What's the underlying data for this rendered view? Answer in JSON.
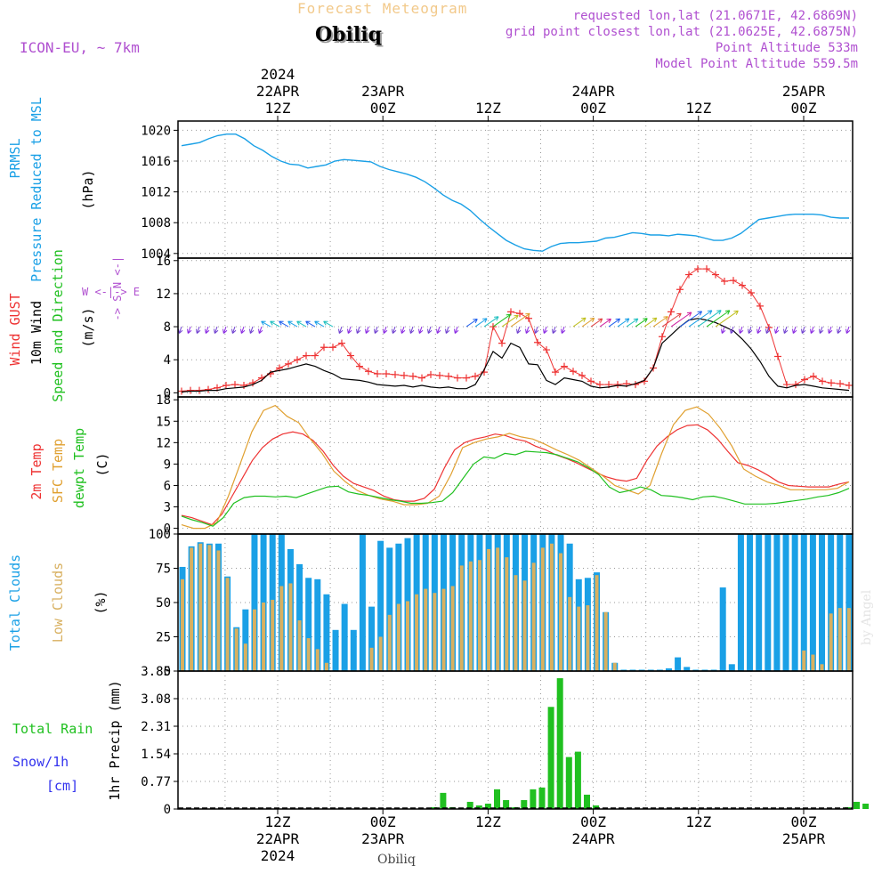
{
  "header": {
    "title": "Forecast Meteogram",
    "location": "Obiliq",
    "model": "ICON-EU, ~ 7km",
    "requested": "requested lon,lat (21.0671E, 42.6869N)",
    "gridpoint": "grid point closest lon,lat (21.0625E, 42.6875N)",
    "point_alt": "Point Altitude 533m",
    "model_alt": "Model Point Altitude 559.5m",
    "footer": "Obiliq",
    "signature": "by Angel"
  },
  "time_axis": {
    "top_labels": [
      {
        "lines": [
          "2024",
          "22APR",
          "12Z"
        ],
        "hour": 0
      },
      {
        "lines": [
          "23APR",
          "00Z"
        ],
        "hour": 12
      },
      {
        "lines": [
          "12Z"
        ],
        "hour": 24
      },
      {
        "lines": [
          "24APR",
          "00Z"
        ],
        "hour": 36
      },
      {
        "lines": [
          "12Z"
        ],
        "hour": 48
      },
      {
        "lines": [
          "25APR",
          "00Z"
        ],
        "hour": 60
      }
    ],
    "bottom_labels": [
      {
        "lines": [
          "12Z",
          "22APR",
          "2024"
        ],
        "hour": 0
      },
      {
        "lines": [
          "00Z",
          "23APR"
        ],
        "hour": 12
      },
      {
        "lines": [
          "12Z"
        ],
        "hour": 24
      },
      {
        "lines": [
          "00Z",
          "24APR"
        ],
        "hour": 36
      },
      {
        "lines": [
          "12Z"
        ],
        "hour": 48
      },
      {
        "lines": [
          "00Z",
          "25APR"
        ],
        "hour": 60
      }
    ]
  },
  "colors": {
    "pressure": "#1aa0e6",
    "gust": "#ee3333",
    "wind": "#000000",
    "temp2m": "#ee3333",
    "sfctemp": "#e0a030",
    "dewpt": "#20c020",
    "totalcloud": "#1aa0e6",
    "lowcloud": "#d8b060",
    "rain": "#20c020",
    "snow": "#3333ee",
    "windlabel": "#20c020",
    "compass": "#b050d0"
  },
  "panels": {
    "pressure": {
      "labels": [
        "PRMSL",
        "Pressure Reduced to MSL"
      ],
      "unit": "(hPa)"
    },
    "wind": {
      "labels": [
        "Wind GUST",
        "10m Wind",
        "Speed and Direction"
      ],
      "unit": "(m/s)",
      "compass": {
        "n": "N",
        "s": "S",
        "w": "W",
        "e": "E"
      }
    },
    "temp": {
      "labels": [
        "2m Temp",
        "SFC Temp",
        "dewpt Temp"
      ],
      "unit": "(C)"
    },
    "cloud": {
      "labels": [
        "Total Clouds",
        "Low Clouds"
      ],
      "unit": "(%)"
    },
    "precip": {
      "labels": [
        "Total  Rain",
        "Snow/1h",
        "[cm]"
      ],
      "unit": "1hr Precip (mm)"
    }
  },
  "chart_data": [
    {
      "type": "line",
      "title": "PRMSL Pressure Reduced to MSL",
      "ylabel": "hPa",
      "ylim": [
        1003.4,
        1021.2
      ],
      "yticks": [
        1004,
        1008,
        1012,
        1016,
        1020
      ],
      "x_hours_start": -9,
      "x_hours_end": 54,
      "series": [
        {
          "name": "PRMSL",
          "values": [
            1018.0,
            1018.2,
            1018.4,
            1018.9,
            1019.3,
            1019.5,
            1019.5,
            1018.9,
            1018.0,
            1017.4,
            1016.6,
            1016.0,
            1015.6,
            1015.5,
            1015.1,
            1015.3,
            1015.5,
            1016.0,
            1016.2,
            1016.1,
            1016.0,
            1015.9,
            1015.3,
            1014.9,
            1014.6,
            1014.3,
            1013.9,
            1013.3,
            1012.5,
            1011.6,
            1010.9,
            1010.4,
            1009.6,
            1008.5,
            1007.5,
            1006.6,
            1005.7,
            1005.1,
            1004.6,
            1004.4,
            1004.3,
            1004.9,
            1005.3,
            1005.4,
            1005.4,
            1005.5,
            1005.6,
            1006.0,
            1006.1,
            1006.4,
            1006.7,
            1006.6,
            1006.4,
            1006.4,
            1006.3,
            1006.5,
            1006.4,
            1006.3,
            1006.0,
            1005.7,
            1005.7,
            1006.0,
            1006.6,
            1007.5,
            1008.4,
            1008.6,
            1008.8,
            1009.0,
            1009.1,
            1009.1,
            1009.1,
            1009.0,
            1008.7,
            1008.6,
            1008.6
          ]
        }
      ]
    },
    {
      "type": "line",
      "title": "Wind GUST / 10m Wind Speed and Direction",
      "ylabel": "m/s",
      "ylim": [
        -0.5,
        16.3
      ],
      "yticks": [
        0,
        4,
        8,
        12,
        16
      ],
      "series": [
        {
          "name": "Wind GUST",
          "values": [
            0.2,
            0.3,
            0.3,
            0.4,
            0.6,
            0.9,
            1.0,
            0.9,
            1.2,
            1.8,
            2.3,
            3.0,
            3.5,
            4.0,
            4.5,
            4.5,
            5.5,
            5.5,
            6.0,
            4.5,
            3.2,
            2.6,
            2.3,
            2.3,
            2.2,
            2.1,
            2.0,
            1.8,
            2.2,
            2.1,
            2.0,
            1.8,
            1.8,
            2.0,
            2.5,
            8.0,
            6.0,
            9.8,
            9.6,
            9.0,
            6.1,
            5.2,
            2.5,
            3.2,
            2.6,
            2.1,
            1.4,
            1.0,
            1.0,
            1.0,
            1.1,
            1.0,
            1.4,
            3.0,
            6.8,
            9.8,
            12.5,
            14.3,
            15.0,
            15.0,
            14.3,
            13.5,
            13.6,
            13.0,
            12.1,
            10.5,
            7.9,
            4.4,
            1.0,
            1.0,
            1.6,
            2.0,
            1.4,
            1.2,
            1.1,
            0.9
          ]
        },
        {
          "name": "10m Wind",
          "values": [
            0.1,
            0.2,
            0.2,
            0.3,
            0.3,
            0.5,
            0.6,
            0.7,
            1.0,
            1.5,
            2.5,
            2.7,
            2.9,
            3.2,
            3.5,
            3.2,
            2.7,
            2.3,
            1.7,
            1.6,
            1.5,
            1.3,
            1.0,
            0.9,
            0.8,
            0.9,
            0.7,
            0.9,
            0.7,
            0.6,
            0.7,
            0.5,
            0.5,
            1.0,
            2.8,
            5.0,
            4.2,
            6.0,
            5.5,
            3.5,
            3.4,
            1.5,
            1.0,
            1.8,
            1.6,
            1.4,
            0.8,
            0.6,
            0.7,
            0.9,
            0.8,
            1.1,
            1.5,
            3.0,
            6.0,
            7.0,
            8.0,
            8.8,
            9.0,
            8.8,
            8.5,
            8.0,
            7.5,
            6.5,
            5.3,
            3.8,
            2.0,
            0.8,
            0.6,
            0.9,
            1.0,
            0.8,
            0.6,
            0.5,
            0.4,
            0.3
          ]
        }
      ]
    },
    {
      "type": "line",
      "title": "2m Temp / SFC Temp / dewpt Temp",
      "ylabel": "C",
      "ylim": [
        -0.8,
        18.4
      ],
      "yticks": [
        0,
        3,
        6,
        9,
        12,
        15,
        18
      ],
      "series": [
        {
          "name": "2m Temp",
          "values": [
            1.8,
            1.5,
            1.0,
            0.5,
            2.0,
            4.5,
            7.0,
            9.5,
            11.3,
            12.5,
            13.2,
            13.5,
            13.2,
            12.3,
            10.8,
            8.8,
            7.3,
            6.3,
            5.8,
            5.3,
            4.5,
            4.0,
            3.8,
            3.8,
            4.2,
            5.5,
            8.5,
            11.0,
            12.0,
            12.5,
            12.8,
            13.2,
            13.0,
            12.5,
            12.2,
            11.5,
            11.0,
            10.3,
            9.8,
            9.2,
            8.5,
            7.8,
            7.2,
            6.8,
            6.6,
            7.0,
            9.5,
            11.5,
            12.8,
            13.8,
            14.4,
            14.5,
            13.8,
            12.5,
            10.8,
            9.2,
            8.8,
            8.2,
            7.4,
            6.5,
            6.0,
            5.9,
            5.8,
            5.8,
            5.8,
            6.2,
            6.5
          ]
        },
        {
          "name": "SFC Temp",
          "values": [
            0.5,
            0.0,
            0.0,
            0.8,
            4.5,
            9.0,
            13.5,
            16.5,
            17.2,
            15.7,
            14.8,
            12.5,
            10.5,
            8.0,
            6.5,
            5.3,
            4.6,
            4.1,
            3.8,
            3.3,
            3.3,
            3.5,
            4.5,
            7.5,
            11.3,
            12.0,
            12.5,
            12.8,
            13.3,
            12.8,
            12.5,
            11.8,
            11.0,
            10.3,
            9.5,
            8.4,
            7.3,
            6.0,
            5.4,
            4.8,
            6.0,
            10.5,
            14.5,
            16.5,
            17.0,
            16.0,
            14.0,
            11.5,
            8.3,
            7.3,
            6.5,
            6.0,
            5.4,
            5.4,
            5.4,
            5.4,
            5.6,
            6.5
          ]
        },
        {
          "name": "dewpt Temp",
          "values": [
            1.7,
            1.2,
            0.8,
            0.3,
            1.5,
            3.5,
            4.3,
            4.5,
            4.5,
            4.4,
            4.5,
            4.3,
            4.8,
            5.3,
            5.8,
            5.9,
            5.1,
            4.8,
            4.6,
            4.3,
            4.0,
            3.8,
            3.5,
            3.5,
            3.6,
            3.8,
            5.0,
            7.0,
            9.0,
            10.0,
            9.8,
            10.5,
            10.3,
            10.8,
            10.7,
            10.6,
            10.3,
            9.8,
            9.3,
            8.5,
            7.5,
            5.8,
            5.0,
            5.3,
            5.8,
            5.4,
            4.6,
            4.5,
            4.3,
            4.0,
            4.4,
            4.5,
            4.2,
            3.8,
            3.4,
            3.4,
            3.4,
            3.5,
            3.7,
            3.9,
            4.1,
            4.4,
            4.6,
            5.0,
            5.6
          ]
        }
      ]
    },
    {
      "type": "bar",
      "title": "Total Clouds / Low Clouds",
      "ylabel": "%",
      "ylim": [
        0,
        100
      ],
      "yticks": [
        0,
        25,
        50,
        75,
        100
      ],
      "series": [
        {
          "name": "Total Clouds",
          "values": [
            76,
            91,
            94,
            93,
            93,
            69,
            32,
            45,
            100,
            100,
            100,
            100,
            89,
            78,
            68,
            67,
            56,
            30,
            49,
            30,
            100,
            47,
            95,
            90,
            93,
            97,
            100,
            100,
            100,
            100,
            100,
            100,
            100,
            100,
            100,
            100,
            100,
            100,
            100,
            100,
            100,
            100,
            100,
            93,
            67,
            68,
            72,
            43,
            6,
            1,
            1,
            1,
            1,
            1,
            2,
            10,
            3,
            1,
            1,
            1,
            61,
            5,
            100,
            100,
            100,
            100,
            100,
            100,
            100,
            100,
            100,
            100,
            100,
            100,
            100
          ]
        },
        {
          "name": "Low Clouds",
          "values": [
            67,
            90,
            93,
            92,
            88,
            68,
            31,
            20,
            45,
            50,
            52,
            62,
            64,
            37,
            24,
            16,
            6,
            0,
            0,
            0,
            0,
            17,
            25,
            41,
            49,
            51,
            56,
            60,
            57,
            60,
            62,
            77,
            80,
            81,
            89,
            90,
            83,
            70,
            66,
            79,
            90,
            93,
            86,
            54,
            47,
            48,
            70,
            43,
            6,
            0,
            0,
            0,
            0,
            0,
            0,
            0,
            0,
            0,
            0,
            0,
            0,
            0,
            0,
            0,
            0,
            0,
            0,
            0,
            0,
            15,
            12,
            5,
            42,
            46,
            46
          ]
        }
      ]
    },
    {
      "type": "bar",
      "title": "Total Rain / Snow 1h",
      "ylabel": "1hr Precip (mm)",
      "ylim": [
        0,
        3.85
      ],
      "yticks": [
        0,
        0.77,
        1.54,
        2.31,
        3.08,
        3.85
      ],
      "series": [
        {
          "name": "Total Rain",
          "values": [
            0,
            0,
            0,
            0,
            0,
            0,
            0,
            0,
            0,
            0,
            0,
            0,
            0,
            0,
            0,
            0,
            0,
            0,
            0,
            0,
            0,
            0,
            0,
            0,
            0,
            0,
            0,
            0,
            0.05,
            0.45,
            0.05,
            0,
            0.2,
            0.1,
            0.15,
            0.55,
            0.25,
            0.05,
            0.25,
            0.55,
            0.6,
            2.85,
            3.65,
            1.45,
            1.6,
            0.4,
            0.1,
            0,
            0,
            0,
            0,
            0,
            0,
            0,
            0,
            0,
            0,
            0,
            0,
            0,
            0,
            0,
            0,
            0,
            0,
            0,
            0,
            0,
            0,
            0,
            0,
            0,
            0,
            0,
            0.05,
            0.2,
            0.15
          ]
        },
        {
          "name": "Snow/1h",
          "values": []
        }
      ]
    }
  ]
}
